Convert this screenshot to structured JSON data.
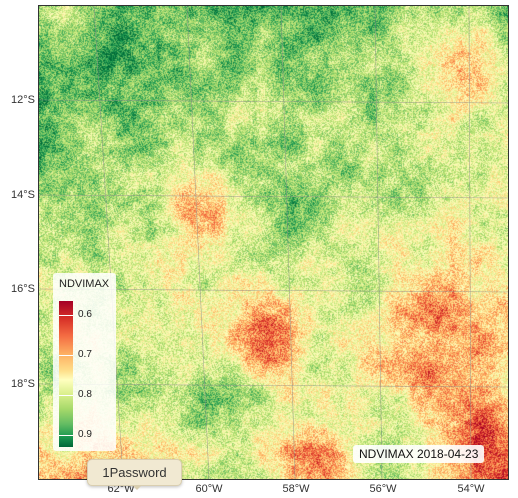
{
  "map": {
    "date_label": "NDVIMAX 2018-04-23",
    "lat_labels": [
      "12°S",
      "14°S",
      "16°S",
      "18°S"
    ],
    "lon_labels": [
      "62°W",
      "60°W",
      "58°W",
      "56°W",
      "54°W"
    ],
    "palette": [
      "#a50026",
      "#d73027",
      "#f46d43",
      "#fdae61",
      "#fee08b",
      "#ffffbf",
      "#d9ef8b",
      "#a6d96a",
      "#66bd63",
      "#1a9850",
      "#006837"
    ]
  },
  "legend": {
    "title": "NDVIMAX",
    "labels": [
      "0.6",
      "0.7",
      "0.8",
      "0.9"
    ]
  },
  "popup": {
    "label": "1Password"
  }
}
